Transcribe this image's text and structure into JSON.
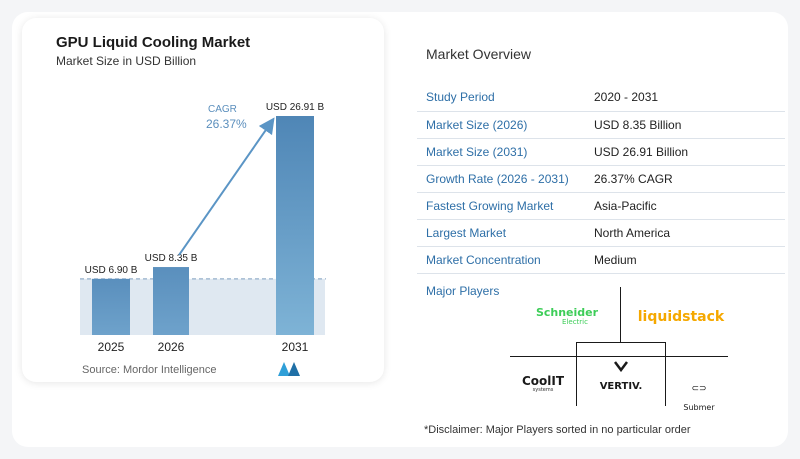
{
  "chart": {
    "title": "GPU Liquid Cooling Market",
    "subtitle": "Market Size in USD Billion",
    "source": "Source:  Mordor Intelligence",
    "cagr_label": "CAGR",
    "cagr_value": "26.37%"
  },
  "chart_data": {
    "type": "bar",
    "title": "GPU Liquid Cooling Market",
    "subtitle": "Market Size in USD Billion",
    "categories": [
      "2025",
      "2026",
      "2031"
    ],
    "values": [
      6.9,
      8.35,
      26.91
    ],
    "data_labels": [
      "USD 6.90 B",
      "USD 8.35 B",
      "USD 26.91 B"
    ],
    "annotation": {
      "label": "CAGR",
      "value": "26.37%"
    },
    "ylim": [
      0,
      29
    ],
    "grid": false,
    "reference_line": "dashed baseline at 2025 value",
    "colors": {
      "bar_2025": "#5b8fbd",
      "bar_2026": "#5b8fbd",
      "bar_2031": "#4f89b9",
      "arrow": "#5b95c5",
      "shade": "#dfe8f1"
    }
  },
  "overview": {
    "title": "Market Overview",
    "rows": [
      {
        "key": "Study Period",
        "value": "2020 - 2031"
      },
      {
        "key": "Market Size (2026)",
        "value": "USD 8.35 Billion"
      },
      {
        "key": "Market Size (2031)",
        "value": "USD 26.91 Billion"
      },
      {
        "key": "Growth Rate (2026 - 2031)",
        "value": "26.37% CAGR"
      },
      {
        "key": "Fastest Growing Market",
        "value": "Asia-Pacific"
      },
      {
        "key": "Largest Market",
        "value": "North America"
      },
      {
        "key": "Market Concentration",
        "value": "Medium"
      }
    ]
  },
  "players": {
    "title": "Major Players",
    "logos": {
      "schneider": {
        "name": "Schneider",
        "sub": "Electric",
        "color": "#3dcd58"
      },
      "liquidstack": {
        "name": "liquidstack",
        "color": "#f5a800"
      },
      "coolit": {
        "name": "CoolIT",
        "sub": "systems"
      },
      "vertiv": {
        "name": "VERTIV."
      },
      "submer": {
        "name": "Submer"
      }
    }
  },
  "disclaimer": "*Disclaimer: Major Players sorted in no particular order"
}
